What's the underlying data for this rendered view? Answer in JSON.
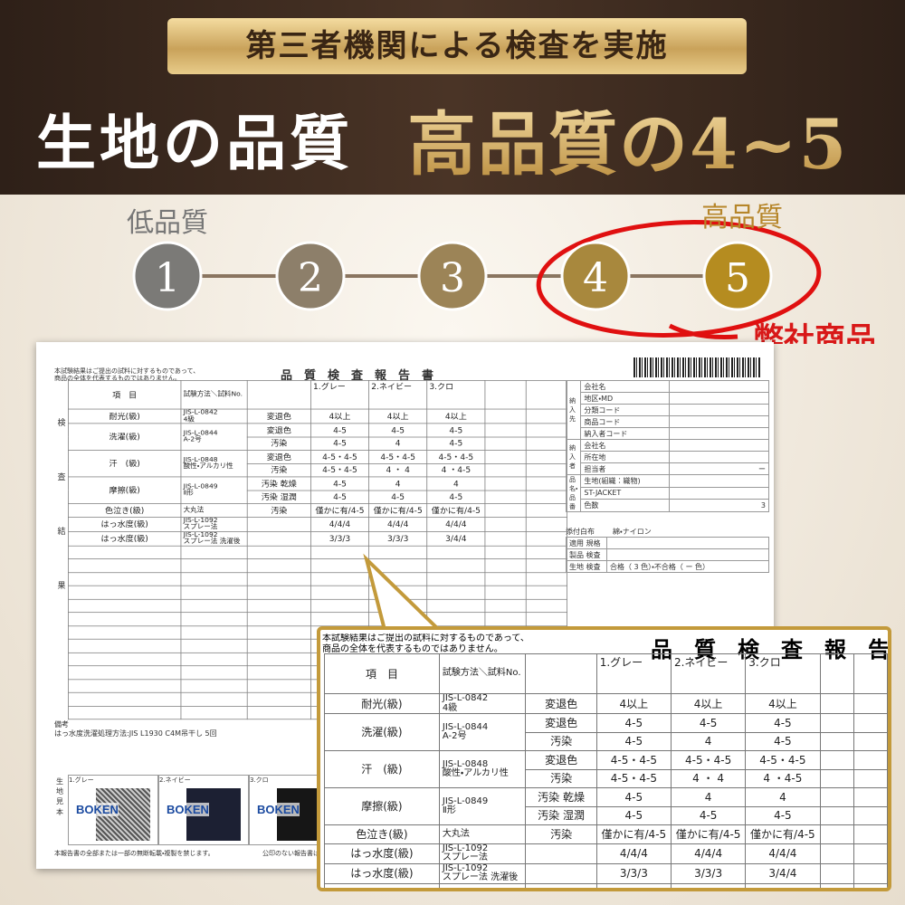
{
  "header": {
    "badge": "第三者機関による検査を実施",
    "title_left": "生地の品質",
    "title_right": "高品質の4~5"
  },
  "scale": {
    "low_label": "低品質",
    "high_label": "高品質",
    "steps": [
      "1",
      "2",
      "3",
      "4",
      "5"
    ],
    "highlight_note": "弊社商品"
  },
  "report": {
    "notice": [
      "本試験結果はご提出の試料に対するものであって、",
      "商品の全体を代表するものではありません。"
    ],
    "title": "品　質　検　査　報　告　書",
    "section_label": "検査結果",
    "head_item": "項　目",
    "head_method": "試験方法＼試料No.",
    "samples": [
      "1.グレー",
      "2.ネイビー",
      "3.クロ"
    ],
    "rows": [
      {
        "item": "耐光(級)",
        "method": [
          "JIS-L-0842",
          "4級"
        ],
        "aspect": "変退色",
        "values": [
          "4以上",
          "4以上",
          "4以上"
        ]
      },
      {
        "item": "洗濯(級)",
        "method": [
          "JIS-L-0844",
          "A-2号"
        ],
        "aspect": "変退色",
        "values": [
          "4-5",
          "4-5",
          "4-5"
        ]
      },
      {
        "aspect": "汚染",
        "values": [
          "4-5",
          "4",
          "4-5"
        ]
      },
      {
        "item": "汗　(級)",
        "method": [
          "JIS-L-0848",
          "酸性・アルカリ性"
        ],
        "aspect": "変退色",
        "values": [
          "4-5・4-5",
          "4-5・4-5",
          "4-5・4-5"
        ]
      },
      {
        "aspect": "汚染",
        "values": [
          "4-5・4-5",
          "4 ・ 4",
          "4 ・4-5"
        ]
      },
      {
        "item": "摩擦(級)",
        "method": [
          "JIS-L-0849",
          "Ⅱ形"
        ],
        "aspect": "汚染 乾燥",
        "values": [
          "4-5",
          "4",
          "4"
        ]
      },
      {
        "aspect": "汚染 湿潤",
        "values": [
          "4-5",
          "4-5",
          "4-5"
        ]
      },
      {
        "item": "色泣き(級)",
        "method": [
          "大丸法"
        ],
        "aspect": "汚染",
        "values": [
          "僅かに有/4-5",
          "僅かに有/4-5",
          "僅かに有/4-5"
        ]
      },
      {
        "item": "はっ水度(級)",
        "method": [
          "JIS-L-1092",
          "スプレー法"
        ],
        "values": [
          "4/4/4",
          "4/4/4",
          "4/4/4"
        ]
      },
      {
        "item": "はっ水度(級)",
        "method": [
          "JIS-L-1092",
          "スプレー法 洗濯後"
        ],
        "values": [
          "3/3/3",
          "3/3/3",
          "3/4/4"
        ]
      }
    ],
    "remark": [
      "備考",
      "はっ水度洗濯処理方法:JIS L1930 C4M吊干し 5回"
    ],
    "swatch_label": "生地見本",
    "swatch_brand": "BOKEN",
    "footer": "本報告書の全部または一部の無断転載・複製を禁じます。",
    "footer_right": "公印のない報告書は無効です。",
    "side": [
      {
        "group": "納入先",
        "fields": [
          {
            "label": "会社名"
          },
          {
            "label": "地区・MD"
          },
          {
            "label": "分類コード"
          },
          {
            "label": "商品コード"
          },
          {
            "label": "納入者コード"
          }
        ]
      },
      {
        "group": "納入者",
        "fields": [
          {
            "label": "会社名"
          },
          {
            "label": "所在地"
          },
          {
            "label": "担当者",
            "value": "ー"
          }
        ]
      },
      {
        "group": "品名・品番",
        "fields": [
          {
            "label": "生地(組織：織物)"
          },
          {
            "label": "ST-JACKET"
          },
          {
            "label": "色数",
            "value": "3"
          }
        ]
      }
    ],
    "attached": {
      "label": "添付白布",
      "value": "綿・ナイロン"
    },
    "checks": [
      {
        "label": "適用 規格"
      },
      {
        "label": "製品 検査"
      },
      {
        "label": "生地 検査",
        "value": "合格（ 3 色）・不合格（ ー 色）"
      }
    ]
  }
}
